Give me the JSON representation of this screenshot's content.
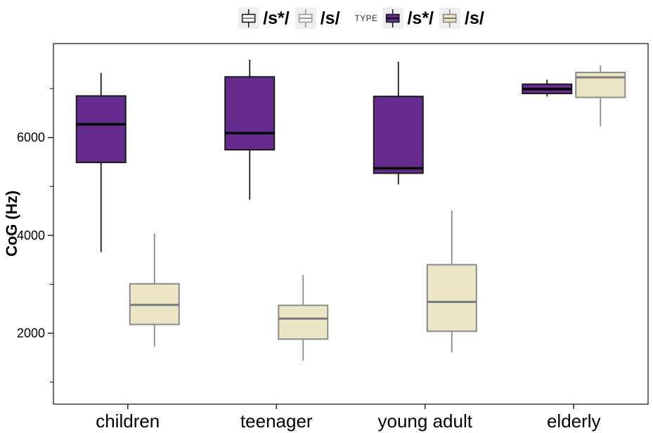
{
  "chart_data": {
    "type": "boxplot",
    "title": "",
    "xlabel": "",
    "ylabel": "CoG (Hz)",
    "ylim": [
      550,
      7920
    ],
    "yticks_major": [
      2000,
      4000,
      6000
    ],
    "yticks_minor": [
      1000,
      3000,
      5000,
      7000
    ],
    "grid": false,
    "legend_position": "top",
    "categories": [
      "children",
      "teenager",
      "young adult",
      "elderly"
    ],
    "series": [
      {
        "name": "/s*/",
        "key": "s-star",
        "fill": "#652B8F",
        "stroke": "#1A1A1A",
        "median_color": "#000000",
        "boxes": [
          {
            "category": "children",
            "whisker_low": 3660,
            "q1": 5490,
            "median": 6270,
            "q3": 6850,
            "whisker_high": 7320
          },
          {
            "category": "teenager",
            "whisker_low": 4730,
            "q1": 5750,
            "median": 6090,
            "q3": 7240,
            "whisker_high": 7590
          },
          {
            "category": "young adult",
            "whisker_low": 5040,
            "q1": 5270,
            "median": 5370,
            "q3": 6840,
            "whisker_high": 7550
          },
          {
            "category": "elderly",
            "whisker_low": 6840,
            "q1": 6900,
            "median": 6990,
            "q3": 7090,
            "whisker_high": 7180
          }
        ]
      },
      {
        "name": "/s/",
        "key": "s",
        "fill": "#ECE6C6",
        "stroke": "#8A8A8A",
        "median_color": "#7A7A7A",
        "boxes": [
          {
            "category": "children",
            "whisker_low": 1730,
            "q1": 2180,
            "median": 2580,
            "q3": 3010,
            "whisker_high": 4040
          },
          {
            "category": "teenager",
            "whisker_low": 1440,
            "q1": 1880,
            "median": 2300,
            "q3": 2570,
            "whisker_high": 3190
          },
          {
            "category": "young adult",
            "whisker_low": 1610,
            "q1": 2040,
            "median": 2640,
            "q3": 3400,
            "whisker_high": 4510
          },
          {
            "category": "elderly",
            "whisker_low": 6230,
            "q1": 6820,
            "median": 7230,
            "q3": 7330,
            "whisker_high": 7470
          }
        ]
      }
    ],
    "legends": [
      {
        "title": "",
        "items": [
          {
            "label": "/s*/",
            "fill": "#FFFFFF",
            "stroke": "#1A1A1A",
            "median": "#8A8A8A"
          },
          {
            "label": "/s/",
            "fill": "#FFFFFF",
            "stroke": "#999999",
            "median": "#999999"
          }
        ]
      },
      {
        "title": "TYPE",
        "items": [
          {
            "label": "/s*/",
            "fill": "#652B8F",
            "stroke": "#1A1A1A",
            "median": "#000000"
          },
          {
            "label": "/s/",
            "fill": "#ECE6C6",
            "stroke": "#8A8A8A",
            "median": "#7A7A7A"
          }
        ]
      }
    ],
    "colors": {
      "panel_border": "#4A4A4A",
      "legend_key_background": "#EFEFEF",
      "tick_color": "#1A1A1A"
    }
  }
}
